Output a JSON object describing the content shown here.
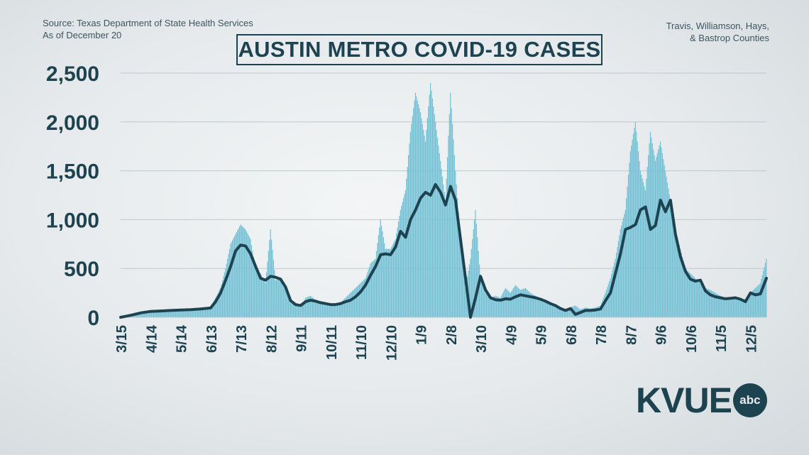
{
  "header": {
    "source_line1": "Source: Texas Department of State Health Services",
    "source_line2": "As of December 20",
    "region_line1": "Travis, Williamson, Hays,",
    "region_line2": "& Bastrop Counties"
  },
  "logo": {
    "text": "KVUE",
    "badge": "abc",
    "badge_icon": "abc-circle-logo-icon"
  },
  "colors": {
    "bar": "#74c1d6",
    "line": "#1d4350",
    "grid": "#bfc8cc",
    "text": "#1d4350"
  },
  "chart_data": {
    "type": "bar",
    "title": "AUSTIN METRO COVID-19 CASES",
    "xlabel": "",
    "ylabel": "",
    "ylim": [
      0,
      2500
    ],
    "yticks": [
      0,
      500,
      1000,
      1500,
      2000,
      2500
    ],
    "ytick_labels": [
      "0",
      "500",
      "1,000",
      "1,500",
      "2,000",
      "2,500"
    ],
    "grid": true,
    "x_tick_labels": [
      "3/15",
      "4/14",
      "5/14",
      "6/13",
      "7/13",
      "8/12",
      "9/11",
      "10/11",
      "11/10",
      "12/10",
      "1/9",
      "2/8",
      "3/10",
      "4/9",
      "5/9",
      "6/8",
      "7/8",
      "8/7",
      "9/6",
      "10/6",
      "11/5",
      "12/5"
    ],
    "x_tick_days": [
      0,
      30,
      60,
      90,
      120,
      150,
      180,
      210,
      240,
      270,
      300,
      330,
      360,
      390,
      420,
      450,
      480,
      510,
      540,
      570,
      600,
      630
    ],
    "x_last_day": 646,
    "series": [
      {
        "kind": "daily_bars",
        "points": [
          [
            0,
            0
          ],
          [
            10,
            30
          ],
          [
            20,
            60
          ],
          [
            30,
            70
          ],
          [
            40,
            75
          ],
          [
            50,
            70
          ],
          [
            60,
            80
          ],
          [
            70,
            85
          ],
          [
            80,
            90
          ],
          [
            90,
            110
          ],
          [
            95,
            200
          ],
          [
            100,
            300
          ],
          [
            105,
            500
          ],
          [
            110,
            750
          ],
          [
            115,
            850
          ],
          [
            120,
            950
          ],
          [
            125,
            900
          ],
          [
            130,
            800
          ],
          [
            135,
            500
          ],
          [
            140,
            450
          ],
          [
            145,
            350
          ],
          [
            150,
            900
          ],
          [
            155,
            380
          ],
          [
            160,
            400
          ],
          [
            165,
            300
          ],
          [
            170,
            150
          ],
          [
            175,
            120
          ],
          [
            180,
            100
          ],
          [
            185,
            200
          ],
          [
            190,
            220
          ],
          [
            195,
            180
          ],
          [
            200,
            160
          ],
          [
            205,
            150
          ],
          [
            210,
            120
          ],
          [
            215,
            140
          ],
          [
            220,
            150
          ],
          [
            225,
            200
          ],
          [
            230,
            250
          ],
          [
            235,
            300
          ],
          [
            240,
            350
          ],
          [
            245,
            400
          ],
          [
            250,
            550
          ],
          [
            255,
            600
          ],
          [
            260,
            1000
          ],
          [
            265,
            700
          ],
          [
            270,
            700
          ],
          [
            275,
            800
          ],
          [
            280,
            1100
          ],
          [
            285,
            1300
          ],
          [
            290,
            1900
          ],
          [
            295,
            2300
          ],
          [
            300,
            2100
          ],
          [
            305,
            1800
          ],
          [
            310,
            2400
          ],
          [
            315,
            2000
          ],
          [
            320,
            1600
          ],
          [
            325,
            1200
          ],
          [
            330,
            2300
          ],
          [
            335,
            1500
          ],
          [
            340,
            800
          ],
          [
            345,
            300
          ],
          [
            350,
            600
          ],
          [
            355,
            1100
          ],
          [
            360,
            400
          ],
          [
            365,
            250
          ],
          [
            370,
            200
          ],
          [
            375,
            220
          ],
          [
            380,
            200
          ],
          [
            385,
            300
          ],
          [
            390,
            250
          ],
          [
            395,
            330
          ],
          [
            400,
            280
          ],
          [
            405,
            300
          ],
          [
            410,
            250
          ],
          [
            415,
            220
          ],
          [
            420,
            200
          ],
          [
            425,
            180
          ],
          [
            430,
            150
          ],
          [
            435,
            120
          ],
          [
            440,
            100
          ],
          [
            445,
            80
          ],
          [
            450,
            100
          ],
          [
            455,
            120
          ],
          [
            460,
            80
          ],
          [
            465,
            100
          ],
          [
            470,
            90
          ],
          [
            475,
            100
          ],
          [
            480,
            120
          ],
          [
            485,
            250
          ],
          [
            490,
            400
          ],
          [
            495,
            600
          ],
          [
            500,
            900
          ],
          [
            505,
            1100
          ],
          [
            510,
            1700
          ],
          [
            515,
            2000
          ],
          [
            520,
            1500
          ],
          [
            525,
            1300
          ],
          [
            530,
            1900
          ],
          [
            535,
            1600
          ],
          [
            540,
            1800
          ],
          [
            545,
            1500
          ],
          [
            550,
            1200
          ],
          [
            555,
            900
          ],
          [
            560,
            700
          ],
          [
            565,
            500
          ],
          [
            570,
            450
          ],
          [
            575,
            400
          ],
          [
            580,
            350
          ],
          [
            585,
            300
          ],
          [
            590,
            280
          ],
          [
            595,
            250
          ],
          [
            600,
            220
          ],
          [
            605,
            200
          ],
          [
            610,
            190
          ],
          [
            615,
            200
          ],
          [
            620,
            180
          ],
          [
            625,
            190
          ],
          [
            630,
            250
          ],
          [
            635,
            300
          ],
          [
            640,
            350
          ],
          [
            646,
            600
          ]
        ]
      },
      {
        "kind": "seven_day_average",
        "points": [
          [
            0,
            0
          ],
          [
            10,
            20
          ],
          [
            20,
            45
          ],
          [
            30,
            60
          ],
          [
            40,
            65
          ],
          [
            50,
            70
          ],
          [
            60,
            75
          ],
          [
            70,
            78
          ],
          [
            80,
            85
          ],
          [
            90,
            95
          ],
          [
            95,
            160
          ],
          [
            100,
            250
          ],
          [
            105,
            380
          ],
          [
            110,
            520
          ],
          [
            115,
            680
          ],
          [
            120,
            740
          ],
          [
            125,
            730
          ],
          [
            130,
            650
          ],
          [
            135,
            520
          ],
          [
            140,
            400
          ],
          [
            145,
            380
          ],
          [
            150,
            420
          ],
          [
            155,
            410
          ],
          [
            160,
            390
          ],
          [
            165,
            310
          ],
          [
            170,
            170
          ],
          [
            175,
            130
          ],
          [
            180,
            120
          ],
          [
            185,
            160
          ],
          [
            190,
            175
          ],
          [
            195,
            165
          ],
          [
            200,
            150
          ],
          [
            205,
            140
          ],
          [
            210,
            130
          ],
          [
            215,
            130
          ],
          [
            220,
            140
          ],
          [
            225,
            160
          ],
          [
            230,
            175
          ],
          [
            235,
            210
          ],
          [
            240,
            260
          ],
          [
            245,
            330
          ],
          [
            250,
            430
          ],
          [
            255,
            520
          ],
          [
            260,
            640
          ],
          [
            265,
            650
          ],
          [
            270,
            640
          ],
          [
            275,
            720
          ],
          [
            280,
            880
          ],
          [
            285,
            820
          ],
          [
            290,
            1000
          ],
          [
            295,
            1100
          ],
          [
            300,
            1220
          ],
          [
            305,
            1280
          ],
          [
            310,
            1250
          ],
          [
            315,
            1360
          ],
          [
            320,
            1280
          ],
          [
            325,
            1150
          ],
          [
            330,
            1340
          ],
          [
            335,
            1200
          ],
          [
            340,
            800
          ],
          [
            345,
            400
          ],
          [
            350,
            -10
          ],
          [
            355,
            200
          ],
          [
            360,
            420
          ],
          [
            365,
            280
          ],
          [
            370,
            200
          ],
          [
            375,
            180
          ],
          [
            380,
            175
          ],
          [
            385,
            190
          ],
          [
            390,
            185
          ],
          [
            395,
            210
          ],
          [
            400,
            230
          ],
          [
            405,
            220
          ],
          [
            410,
            210
          ],
          [
            415,
            200
          ],
          [
            420,
            185
          ],
          [
            425,
            165
          ],
          [
            430,
            140
          ],
          [
            435,
            120
          ],
          [
            440,
            90
          ],
          [
            445,
            70
          ],
          [
            450,
            90
          ],
          [
            455,
            30
          ],
          [
            460,
            50
          ],
          [
            465,
            70
          ],
          [
            470,
            70
          ],
          [
            475,
            75
          ],
          [
            480,
            85
          ],
          [
            485,
            170
          ],
          [
            490,
            250
          ],
          [
            495,
            450
          ],
          [
            500,
            650
          ],
          [
            505,
            900
          ],
          [
            510,
            920
          ],
          [
            515,
            950
          ],
          [
            520,
            1100
          ],
          [
            525,
            1130
          ],
          [
            530,
            900
          ],
          [
            535,
            940
          ],
          [
            540,
            1200
          ],
          [
            545,
            1080
          ],
          [
            550,
            1200
          ],
          [
            555,
            850
          ],
          [
            560,
            620
          ],
          [
            565,
            470
          ],
          [
            570,
            390
          ],
          [
            575,
            370
          ],
          [
            580,
            380
          ],
          [
            585,
            270
          ],
          [
            590,
            230
          ],
          [
            595,
            210
          ],
          [
            600,
            200
          ],
          [
            605,
            190
          ],
          [
            610,
            195
          ],
          [
            615,
            200
          ],
          [
            620,
            185
          ],
          [
            625,
            160
          ],
          [
            630,
            250
          ],
          [
            635,
            230
          ],
          [
            640,
            240
          ],
          [
            646,
            400
          ]
        ]
      }
    ]
  }
}
